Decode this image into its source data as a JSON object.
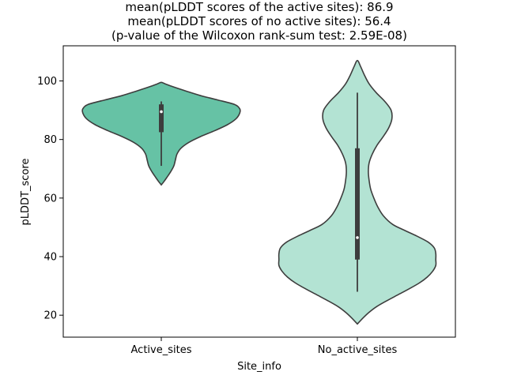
{
  "chart_data": {
    "type": "violin",
    "title_lines": [
      "mean(pLDDT scores of the active sites): 86.9",
      "mean(pLDDT scores of no active sites): 56.4",
      "(p-value of the Wilcoxon rank-sum test: 2.59E-08)"
    ],
    "xlabel": "Site_info",
    "ylabel": "pLDDT_score",
    "categories": [
      "Active_sites",
      "No_active_sites"
    ],
    "ylim": [
      12.5,
      112
    ],
    "yticks": [
      20,
      40,
      60,
      80,
      100
    ],
    "grid": false,
    "colors": {
      "Active_sites": "#66c2a5",
      "No_active_sites": "#b3e3d3",
      "outline": "#3d3d3d"
    },
    "violins": [
      {
        "category": "Active_sites",
        "min": 64.5,
        "max": 99.5,
        "q1": 82.5,
        "median": 89.5,
        "q3": 92,
        "whisker_low": 71,
        "whisker_high": 93,
        "density": [
          [
            64.5,
            0.0
          ],
          [
            65.5,
            0.03
          ],
          [
            67,
            0.07
          ],
          [
            69,
            0.12
          ],
          [
            71,
            0.16
          ],
          [
            73,
            0.18
          ],
          [
            75,
            0.2
          ],
          [
            77,
            0.25
          ],
          [
            79,
            0.35
          ],
          [
            81,
            0.5
          ],
          [
            83,
            0.68
          ],
          [
            85,
            0.84
          ],
          [
            87,
            0.95
          ],
          [
            89,
            1.0
          ],
          [
            90.5,
            1.0
          ],
          [
            92,
            0.93
          ],
          [
            93.5,
            0.72
          ],
          [
            95,
            0.5
          ],
          [
            96.5,
            0.32
          ],
          [
            98,
            0.15
          ],
          [
            99,
            0.05
          ],
          [
            99.5,
            0.0
          ]
        ]
      },
      {
        "category": "No_active_sites",
        "min": 17,
        "max": 107,
        "q1": 39,
        "median": 46.5,
        "q3": 77,
        "whisker_low": 28,
        "whisker_high": 96,
        "density": [
          [
            17,
            0.0
          ],
          [
            19,
            0.07
          ],
          [
            21,
            0.15
          ],
          [
            23,
            0.25
          ],
          [
            25,
            0.38
          ],
          [
            27,
            0.52
          ],
          [
            29,
            0.66
          ],
          [
            31,
            0.79
          ],
          [
            33,
            0.89
          ],
          [
            35,
            0.96
          ],
          [
            37,
            1.0
          ],
          [
            39,
            1.0
          ],
          [
            41,
            1.0
          ],
          [
            43,
            0.98
          ],
          [
            45,
            0.9
          ],
          [
            47,
            0.76
          ],
          [
            49,
            0.6
          ],
          [
            51,
            0.45
          ],
          [
            54,
            0.33
          ],
          [
            57,
            0.26
          ],
          [
            60,
            0.21
          ],
          [
            63,
            0.17
          ],
          [
            66,
            0.15
          ],
          [
            69,
            0.14
          ],
          [
            72,
            0.15
          ],
          [
            75,
            0.19
          ],
          [
            78,
            0.25
          ],
          [
            81,
            0.33
          ],
          [
            84,
            0.4
          ],
          [
            87,
            0.44
          ],
          [
            90,
            0.43
          ],
          [
            93,
            0.35
          ],
          [
            96,
            0.24
          ],
          [
            99,
            0.15
          ],
          [
            102,
            0.09
          ],
          [
            105,
            0.04
          ],
          [
            107,
            0.0
          ]
        ]
      }
    ]
  }
}
